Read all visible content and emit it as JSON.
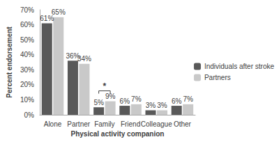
{
  "chart_data": {
    "type": "bar",
    "x_label": "Physical activity companion",
    "y_label": "Percent endorsement",
    "categories": [
      "Alone",
      "Partner",
      "Family",
      "Friend",
      "Colleague",
      "Other"
    ],
    "series": [
      {
        "name": "Individuals after stroke",
        "color": "#595959",
        "values": [
          61,
          36,
          5,
          6,
          3,
          6
        ],
        "value_labels": [
          "61%",
          "36%",
          "5%",
          "6%",
          "3%",
          "6%"
        ]
      },
      {
        "name": "Partners",
        "color": "#c9c9c9",
        "values": [
          65,
          34,
          9,
          7,
          3,
          7
        ],
        "value_labels": [
          "65%",
          "34%",
          "9%",
          "7%",
          "3%",
          "7%"
        ]
      }
    ],
    "ylim": [
      0,
      70
    ],
    "yticks": [
      {
        "value": 0,
        "label": "0%"
      },
      {
        "value": 10,
        "label": "10%"
      },
      {
        "value": 20,
        "label": "20%"
      },
      {
        "value": 30,
        "label": "30%"
      },
      {
        "value": 40,
        "label": "40%"
      },
      {
        "value": 50,
        "label": "50%"
      },
      {
        "value": 60,
        "label": "60%"
      },
      {
        "value": 70,
        "label": "70%"
      }
    ],
    "annotations": [
      {
        "text": "*",
        "category": "Family"
      }
    ],
    "data_labels": true,
    "grid": false,
    "legend": "right"
  }
}
